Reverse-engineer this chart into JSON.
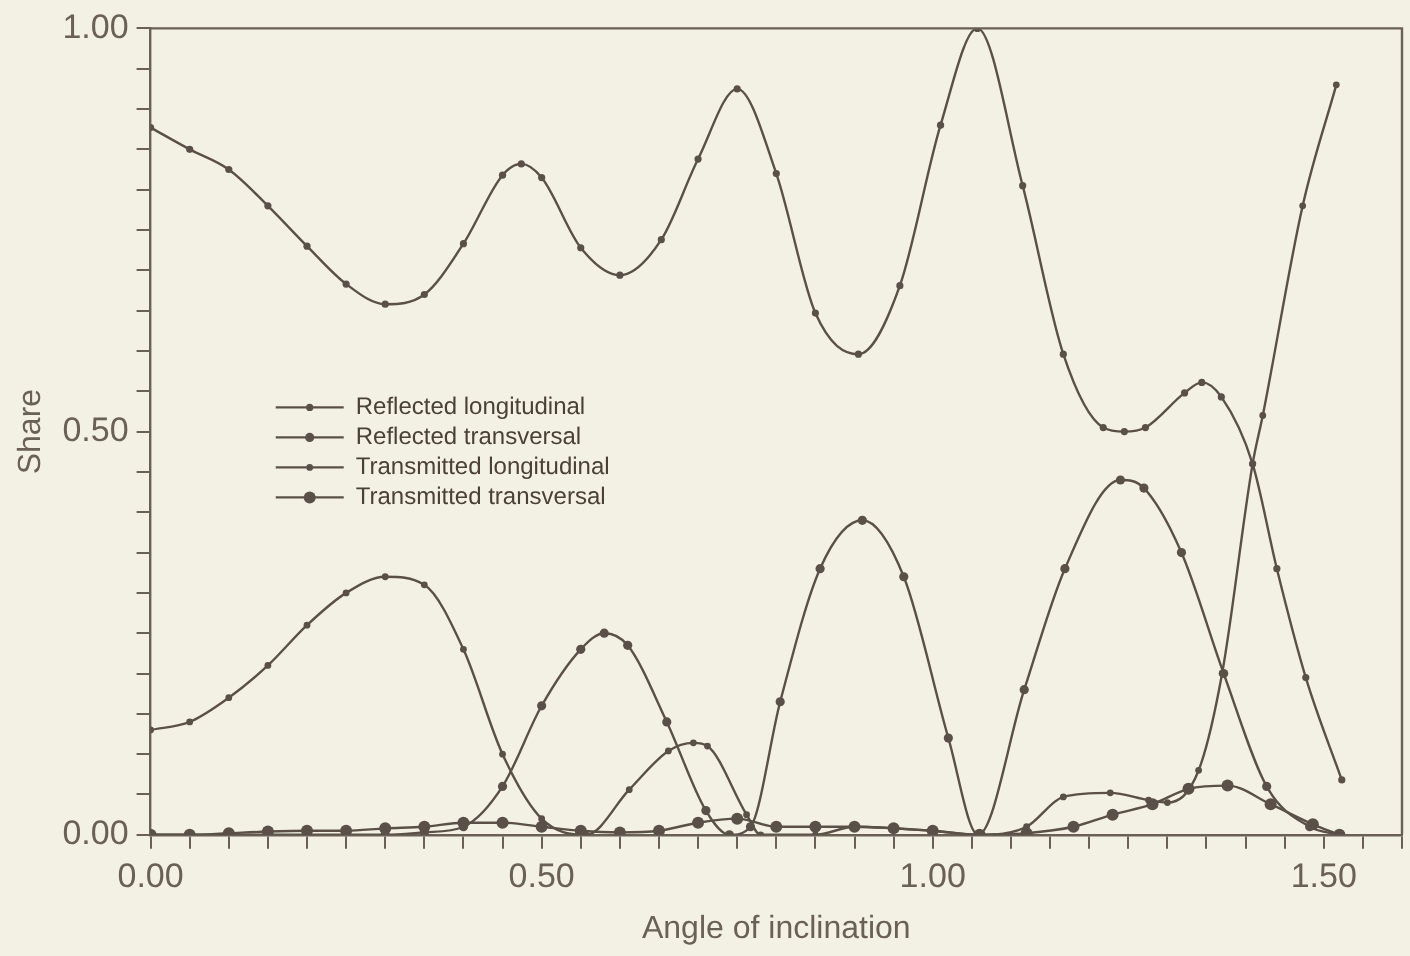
{
  "chart_data": {
    "type": "line",
    "xlabel": "Angle of inclination",
    "ylabel": "Share",
    "xlim": [
      0,
      1.6
    ],
    "xticks": [
      {
        "value": 0,
        "label": "0.00"
      },
      {
        "value": 0.05,
        "label": null
      },
      {
        "value": 0.1,
        "label": null
      },
      {
        "value": 0.15,
        "label": null
      },
      {
        "value": 0.2,
        "label": null
      },
      {
        "value": 0.25,
        "label": null
      },
      {
        "value": 0.3,
        "label": null
      },
      {
        "value": 0.35,
        "label": null
      },
      {
        "value": 0.4,
        "label": null
      },
      {
        "value": 0.45,
        "label": null
      },
      {
        "value": 0.5,
        "label": "0.50"
      },
      {
        "value": 0.55,
        "label": null
      },
      {
        "value": 0.6,
        "label": null
      },
      {
        "value": 0.65,
        "label": null
      },
      {
        "value": 0.7,
        "label": null
      },
      {
        "value": 0.75,
        "label": null
      },
      {
        "value": 0.8,
        "label": null
      },
      {
        "value": 0.85,
        "label": null
      },
      {
        "value": 0.9,
        "label": null
      },
      {
        "value": 0.95,
        "label": null
      },
      {
        "value": 1,
        "label": "1.00"
      },
      {
        "value": 1.05,
        "label": null
      },
      {
        "value": 1.1,
        "label": null
      },
      {
        "value": 1.15,
        "label": null
      },
      {
        "value": 1.2,
        "label": null
      },
      {
        "value": 1.25,
        "label": null
      },
      {
        "value": 1.3,
        "label": null
      },
      {
        "value": 1.35,
        "label": null
      },
      {
        "value": 1.4,
        "label": null
      },
      {
        "value": 1.45,
        "label": null
      },
      {
        "value": 1.5,
        "label": "1.50"
      },
      {
        "value": 1.55,
        "label": null
      },
      {
        "value": 1.6,
        "label": null
      }
    ],
    "ylim": [
      0,
      1
    ],
    "yticks": [
      {
        "value": 0,
        "label": "0.00"
      },
      {
        "value": 0.05,
        "label": null
      },
      {
        "value": 0.1,
        "label": null
      },
      {
        "value": 0.15,
        "label": null
      },
      {
        "value": 0.2,
        "label": null
      },
      {
        "value": 0.25,
        "label": null
      },
      {
        "value": 0.3,
        "label": null
      },
      {
        "value": 0.35,
        "label": null
      },
      {
        "value": 0.4,
        "label": null
      },
      {
        "value": 0.45,
        "label": null
      },
      {
        "value": 0.5,
        "label": "0.50"
      },
      {
        "value": 0.55,
        "label": null
      },
      {
        "value": 0.6,
        "label": null
      },
      {
        "value": 0.65,
        "label": null
      },
      {
        "value": 0.7,
        "label": null
      },
      {
        "value": 0.75,
        "label": null
      },
      {
        "value": 0.8,
        "label": null
      },
      {
        "value": 0.85,
        "label": null
      },
      {
        "value": 0.9,
        "label": null
      },
      {
        "value": 0.95,
        "label": null
      },
      {
        "value": 1,
        "label": "1.00"
      }
    ],
    "grid": false,
    "legend": "left",
    "marker": "circle",
    "line_style": "solid",
    "series": [
      {
        "name": "Reflected longitudinal",
        "color": "#5a5048",
        "x": [
          0,
          0.05,
          0.1,
          0.15,
          0.2,
          0.25,
          0.3,
          0.35,
          0.4,
          0.45,
          0.474,
          0.5,
          0.55,
          0.6,
          0.653,
          0.7,
          0.75,
          0.8,
          0.85,
          0.905,
          0.958,
          1.01,
          1.057,
          1.115,
          1.167,
          1.218,
          1.245,
          1.272,
          1.322,
          1.344,
          1.369,
          1.409,
          1.44,
          1.477,
          1.523
        ],
        "values": [
          0.877,
          0.85,
          0.825,
          0.78,
          0.73,
          0.683,
          0.658,
          0.67,
          0.733,
          0.818,
          0.832,
          0.815,
          0.728,
          0.694,
          0.738,
          0.838,
          0.925,
          0.82,
          0.647,
          0.596,
          0.681,
          0.88,
          1.0,
          0.805,
          0.596,
          0.505,
          0.5,
          0.505,
          0.548,
          0.561,
          0.543,
          0.46,
          0.33,
          0.195,
          0.068
        ]
      },
      {
        "name": "Reflected transversal",
        "color": "#5a5048",
        "x": [
          0,
          0.1,
          0.2,
          0.3,
          0.35,
          0.4,
          0.45,
          0.5,
          0.55,
          0.58,
          0.61,
          0.66,
          0.71,
          0.74,
          0.767,
          0.805,
          0.856,
          0.91,
          0.963,
          1.02,
          1.058,
          1.117,
          1.169,
          1.24,
          1.27,
          1.318,
          1.372,
          1.427,
          1.482,
          1.52
        ],
        "values": [
          0,
          0,
          0,
          0,
          0.003,
          0.01,
          0.06,
          0.16,
          0.23,
          0.25,
          0.235,
          0.14,
          0.03,
          0,
          0.01,
          0.165,
          0.33,
          0.39,
          0.32,
          0.12,
          0,
          0.18,
          0.33,
          0.44,
          0.43,
          0.35,
          0.2,
          0.06,
          0.01,
          0
        ]
      },
      {
        "name": "Transmitted longitudinal",
        "color": "#5a5048",
        "x": [
          0,
          0.05,
          0.1,
          0.15,
          0.2,
          0.25,
          0.3,
          0.35,
          0.4,
          0.45,
          0.5,
          0.557,
          0.612,
          0.662,
          0.694,
          0.712,
          0.762,
          0.78,
          0.85,
          0.9,
          1.0,
          1.06,
          1.12,
          1.167,
          1.227,
          1.276,
          1.3,
          1.34,
          1.37,
          1.409,
          1.422,
          1.473,
          1.516
        ],
        "values": [
          0.13,
          0.14,
          0.17,
          0.21,
          0.26,
          0.3,
          0.32,
          0.31,
          0.23,
          0.1,
          0.02,
          0,
          0.056,
          0.104,
          0.114,
          0.11,
          0.025,
          0,
          0,
          0.01,
          0.005,
          0,
          0.01,
          0.047,
          0.052,
          0.043,
          0.04,
          0.08,
          0.2,
          0.46,
          0.52,
          0.78,
          0.93
        ]
      },
      {
        "name": "Transmitted transversal",
        "color": "#5a5048",
        "x": [
          0,
          0.05,
          0.1,
          0.15,
          0.2,
          0.25,
          0.3,
          0.35,
          0.4,
          0.45,
          0.5,
          0.55,
          0.6,
          0.65,
          0.7,
          0.75,
          0.8,
          0.85,
          0.9,
          0.95,
          1.0,
          1.06,
          1.12,
          1.18,
          1.23,
          1.281,
          1.327,
          1.377,
          1.432,
          1.486,
          1.52
        ],
        "values": [
          0,
          0,
          0.002,
          0.004,
          0.005,
          0.005,
          0.008,
          0.01,
          0.015,
          0.015,
          0.01,
          0.005,
          0.003,
          0.005,
          0.015,
          0.02,
          0.01,
          0.01,
          0.01,
          0.008,
          0.005,
          0,
          0.002,
          0.01,
          0.025,
          0.038,
          0.057,
          0.061,
          0.038,
          0.013,
          0
        ]
      }
    ]
  }
}
